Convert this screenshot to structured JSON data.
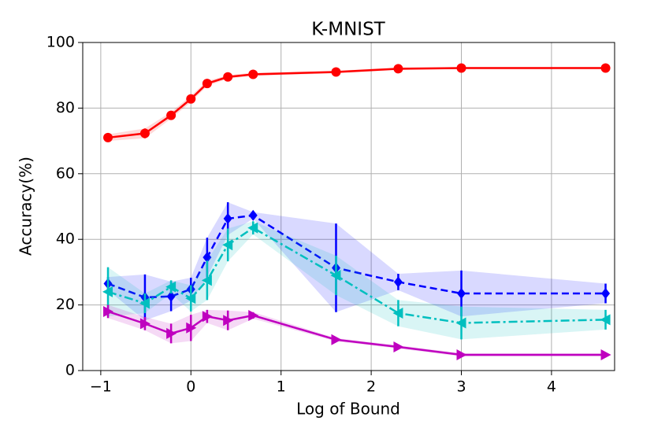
{
  "chart_data": {
    "type": "line",
    "title": "K-MNIST",
    "xlabel": "Log of Bound",
    "ylabel": "Accuracy(%)",
    "x": [
      -0.92,
      -0.51,
      -0.22,
      0,
      0.18,
      0.41,
      0.69,
      1.61,
      2.3,
      3.0,
      4.6
    ],
    "series": [
      {
        "color": "#ff0000",
        "linestyle": "solid",
        "marker": "o",
        "values": [
          71,
          72.3,
          77.8,
          82.8,
          87.5,
          89.5,
          90.3,
          91,
          92,
          92.2,
          92.2
        ],
        "errors": [
          1,
          1.5,
          1,
          1,
          0.8,
          0.5,
          0.5,
          0.4,
          0.4,
          0.3,
          0.3
        ]
      },
      {
        "color": "#0000ff",
        "linestyle": "dashed",
        "marker": "D",
        "values": [
          26.5,
          22.3,
          22.6,
          24.8,
          34.5,
          46.3,
          47.3,
          31.3,
          27,
          23.5,
          23.5
        ],
        "errors": [
          2,
          7,
          4.5,
          3.5,
          6,
          5,
          1,
          13.5,
          2.5,
          7,
          3
        ]
      },
      {
        "color": "#00bfbf",
        "linestyle": "dashdot",
        "marker": "<",
        "values": [
          24,
          20.5,
          25.5,
          22,
          27.5,
          38.3,
          43.5,
          29,
          17.5,
          14.5,
          15.5
        ],
        "errors": [
          7.5,
          3,
          2,
          4,
          6,
          5,
          2,
          6,
          4,
          5,
          3
        ]
      },
      {
        "color": "#bf00bf",
        "linestyle": "solid",
        "marker": ">",
        "values": [
          18,
          14.3,
          11.3,
          13,
          16.5,
          15.3,
          16.8,
          9.4,
          7.2,
          4.8,
          4.8
        ],
        "errors": [
          2,
          2,
          3,
          4,
          2,
          3,
          1,
          0.5,
          0.5,
          0.5,
          0.5
        ]
      }
    ],
    "xlim": [
      -1.2,
      4.7
    ],
    "ylim": [
      0,
      100
    ],
    "xticks": [
      {
        "value": -1,
        "label": "−1"
      },
      0,
      1,
      2,
      3,
      4
    ],
    "yticks": [
      0,
      20,
      40,
      60,
      80,
      100
    ],
    "grid": true
  }
}
